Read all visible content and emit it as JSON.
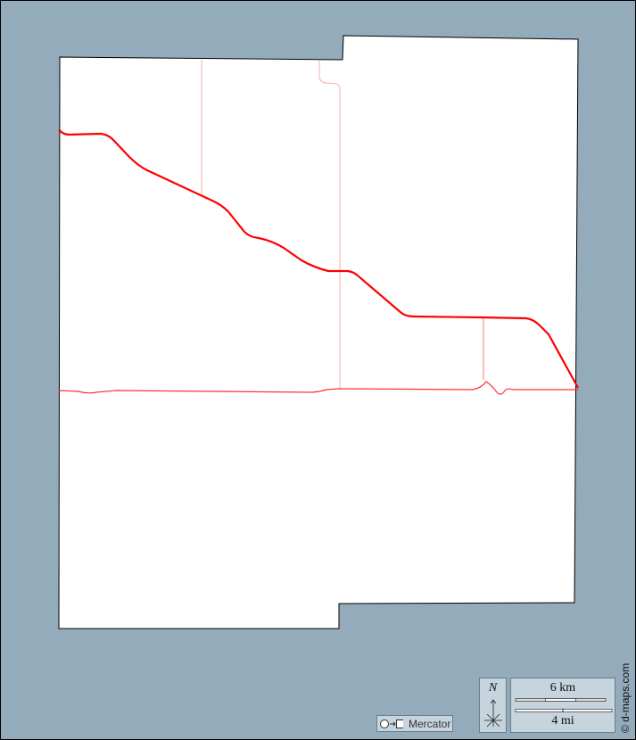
{
  "map": {
    "projection_label": "Mercator",
    "projection_icon": "circle-to-square-icon",
    "north_label": "N",
    "scale_km": "6 km",
    "scale_mi": "4 mi",
    "credit": "© d-maps.com",
    "colors": {
      "water": "#94abbb",
      "land": "#ffffff",
      "major_road": "#ff0000",
      "minor_road": "#ff9999",
      "panel": "#c5d4dd"
    }
  }
}
